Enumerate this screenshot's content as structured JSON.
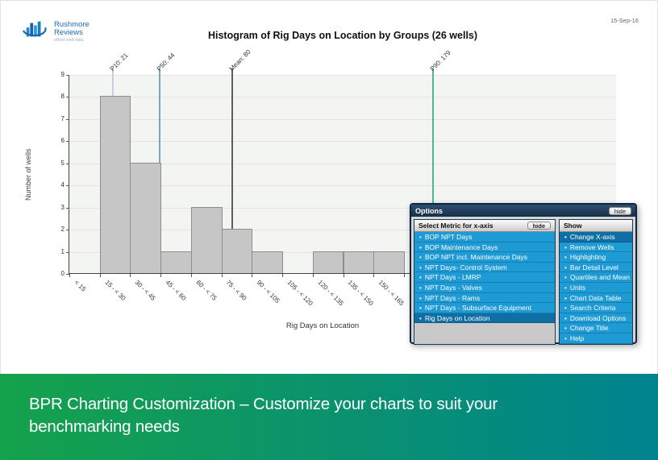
{
  "header": {
    "logo": {
      "name_line1": "Rushmore",
      "name_line2": "Reviews",
      "tagline": "offset well data"
    },
    "date": "15-Sep-16"
  },
  "chart_data": {
    "type": "bar",
    "title": "Histogram of Rig Days on Location by Groups (26 wells)",
    "xlabel": "Rig Days on Location",
    "ylabel": "Number of wells",
    "categories": [
      "< 15",
      "15 - < 30",
      "30 - < 45",
      "45 - < 60",
      "60 - < 75",
      "75 - < 90",
      "90 - < 105",
      "105 - < 120",
      "120 - < 135",
      "135 - < 150",
      "150 - < 165"
    ],
    "values": [
      0,
      8,
      5,
      1,
      3,
      2,
      1,
      0,
      1,
      1,
      1
    ],
    "ylim": [
      0,
      9
    ],
    "bin_days": 15,
    "xlim_days": [
      0,
      270
    ],
    "grid": "horizontal",
    "reference_lines": [
      {
        "label": "P10: 21",
        "value": 21,
        "color": "#c9cce8"
      },
      {
        "label": "P50: 44",
        "value": 44,
        "color": "#76a3c6"
      },
      {
        "label": "Mean: 80",
        "value": 80,
        "color": "#5e5e5e"
      },
      {
        "label": "P90: 179",
        "value": 179,
        "color": "#4fb68d"
      }
    ]
  },
  "options_panel": {
    "title": "Options",
    "hide_button": "hide",
    "left_column": {
      "header": "Select Metric for x-axis",
      "hide_button": "hide",
      "items": [
        "BOP NPT Days",
        "BOP Maintenance Days",
        "BOP NPT incl. Maintenance Days",
        "NPT Days- Control System",
        "NPT Days - LMRP",
        "NPT Days - Valves",
        "NPT Days - Rams",
        "NPT Days - Subsurface Equipment",
        "Rig Days on Location"
      ],
      "selected": "Rig Days on Location"
    },
    "right_column": {
      "header": "Show",
      "items": [
        "Change X-axis",
        "Remove Wells",
        "Highlighting",
        "Bar Detail Level",
        "Quartiles and Mean",
        "Units",
        "Chart Data Table",
        "Search Criteria",
        "Download Options",
        "Change Title",
        "Help"
      ],
      "selected": "Change X-axis"
    }
  },
  "banner": {
    "text": "BPR Charting Customization – Customize your charts to suit your benchmarking needs"
  },
  "colors": {
    "item_blue": "#1e9ad5",
    "item_blue_selected": "#0f6fa5",
    "bar_fill": "#c6c6c6",
    "banner_left": "#15a24b",
    "banner_right": "#00838f",
    "logo_blue": "#1a6cb5"
  }
}
